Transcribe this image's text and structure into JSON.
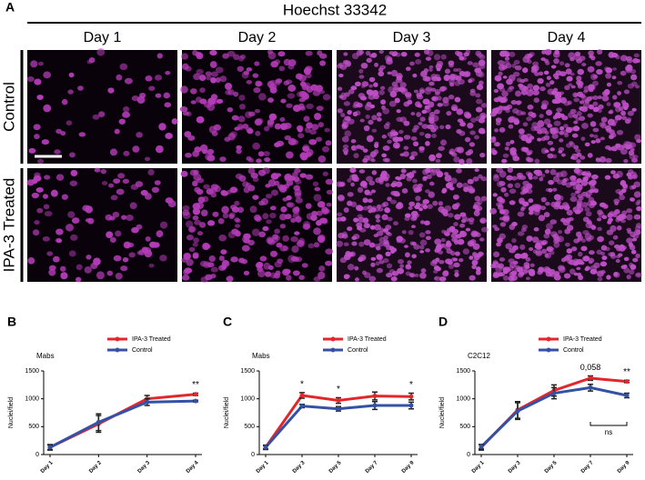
{
  "figure": {
    "panel_label": "A",
    "title": "Hoechst 33342",
    "columns": [
      "Day 1",
      "Day 2",
      "Day 3",
      "Day 4"
    ],
    "rows": [
      "Control",
      "IPA-3 Treated"
    ]
  },
  "chart_data": [
    {
      "type": "line",
      "panel_label": "B",
      "subtitle": "Mabs",
      "ylabel": "Nuclei/field",
      "categories": [
        "Day 1",
        "Day 2",
        "Day 3",
        "Day 4"
      ],
      "series": [
        {
          "name": "IPA-3 Treated",
          "color": "#e3262b",
          "values": [
            130,
            550,
            1000,
            1080
          ],
          "errors": [
            50,
            150,
            60,
            20
          ]
        },
        {
          "name": "Control",
          "color": "#3352a6",
          "values": [
            130,
            580,
            940,
            960
          ],
          "errors": [
            40,
            150,
            60,
            15
          ]
        }
      ],
      "ylim": [
        0,
        1500
      ],
      "yticks": [
        0,
        500,
        1000,
        1500
      ],
      "annotations": [
        {
          "text": "**",
          "at": "Day 4"
        }
      ]
    },
    {
      "type": "line",
      "panel_label": "C",
      "subtitle": "Mabs",
      "ylabel": "Nuclei/field",
      "categories": [
        "Day 1",
        "Day 3",
        "Day 5",
        "Day 7",
        "Day 9"
      ],
      "series": [
        {
          "name": "IPA-3 Treated",
          "color": "#e3262b",
          "values": [
            130,
            1060,
            970,
            1050,
            1040
          ],
          "errors": [
            40,
            50,
            50,
            70,
            60
          ]
        },
        {
          "name": "Control",
          "color": "#3352a6",
          "values": [
            130,
            870,
            820,
            880,
            880
          ],
          "errors": [
            30,
            30,
            40,
            70,
            60
          ]
        }
      ],
      "ylim": [
        0,
        1500
      ],
      "yticks": [
        0,
        500,
        1000,
        1500
      ],
      "annotations": [
        {
          "text": "*",
          "at": "Day 3"
        },
        {
          "text": "*",
          "at": "Day 5"
        },
        {
          "text": "*",
          "at": "Day 9"
        }
      ]
    },
    {
      "type": "line",
      "panel_label": "D",
      "subtitle": "C2C12",
      "ylabel": "Nuclei/field",
      "categories": [
        "Day 1",
        "Day 3",
        "Day 5",
        "Day 7",
        "Day 9"
      ],
      "series": [
        {
          "name": "IPA-3 Treated",
          "color": "#e3262b",
          "values": [
            130,
            800,
            1150,
            1370,
            1310
          ],
          "errors": [
            50,
            150,
            100,
            40,
            20
          ]
        },
        {
          "name": "Control",
          "color": "#3352a6",
          "values": [
            140,
            780,
            1100,
            1200,
            1060
          ],
          "errors": [
            40,
            150,
            100,
            60,
            40
          ]
        }
      ],
      "ylim": [
        0,
        1500
      ],
      "yticks": [
        0,
        500,
        1000,
        1500
      ],
      "annotations": [
        {
          "text": "0,058",
          "at": "Day 7"
        },
        {
          "text": "**",
          "at": "Day 9"
        }
      ],
      "bracket": {
        "text": "ns",
        "from": "Day 7",
        "to": "Day 9"
      }
    }
  ]
}
